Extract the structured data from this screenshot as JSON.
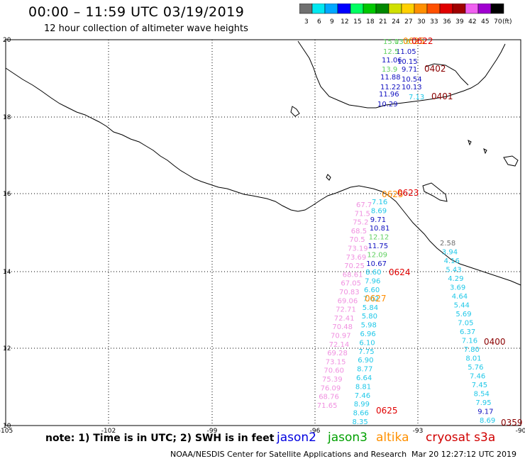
{
  "header": {
    "title": "00:00 – 11:59 UTC 03/19/2019",
    "subtitle": "12 hour collection of altimeter wave heights"
  },
  "colorbar": {
    "labels": [
      "3",
      "6",
      "9",
      "12",
      "15",
      "18",
      "21",
      "24",
      "27",
      "30",
      "33",
      "36",
      "39",
      "42",
      "45",
      "70"
    ],
    "unit": "(ft)",
    "colors": [
      "#707070",
      "#00e8f0",
      "#00a8ff",
      "#0000ff",
      "#00ff60",
      "#00c800",
      "#008800",
      "#d0e000",
      "#ffd000",
      "#ff9000",
      "#ff5000",
      "#e00000",
      "#a00000",
      "#f060f0",
      "#a000d0",
      "#000000"
    ]
  },
  "axes": {
    "lat_labels": [
      "20",
      "18",
      "16",
      "14",
      "12",
      "10"
    ],
    "lon_labels": [
      "-105",
      "-102",
      "-99",
      "-96",
      "-93",
      "-90"
    ]
  },
  "tracks": {
    "coast_north": {
      "values": [
        {
          "t": "15.0",
          "c": "#60d060"
        },
        {
          "t": "13.6",
          "c": "#60d060"
        },
        {
          "t": "11.05",
          "c": "#1010c0"
        },
        {
          "t": "12.5",
          "c": "#60d060"
        },
        {
          "t": "10.15",
          "c": "#1010c0"
        },
        {
          "t": "11.06",
          "c": "#1010c0"
        },
        {
          "t": "13.9",
          "c": "#60d060"
        },
        {
          "t": "9.71",
          "c": "#1010c0"
        },
        {
          "t": "10.54",
          "c": "#1010c0"
        },
        {
          "t": "11.88",
          "c": "#1010c0"
        },
        {
          "t": "11.22",
          "c": "#1010c0"
        },
        {
          "t": "10.13",
          "c": "#1010c0"
        },
        {
          "t": "11.96",
          "c": "#1010c0"
        },
        {
          "t": "7.13",
          "c": "#20c8e8"
        },
        {
          "t": "10.29",
          "c": "#1010c0"
        }
      ],
      "time_labels": [
        {
          "t": "0625",
          "c": "#ff8c00"
        },
        {
          "t": "0622",
          "c": "#e00000"
        },
        {
          "t": "0402",
          "c": "#8b0000"
        },
        {
          "t": "0401",
          "c": "#8b0000"
        }
      ]
    },
    "pink_track": [
      "67.7",
      "71.5",
      "75.2",
      "68.5",
      "70.5",
      "73.19",
      "73.69",
      "70.25",
      "68.61",
      "67.05",
      "70.83",
      "69.06",
      "72.71",
      "72.41",
      "70.48",
      "70.97",
      "72.14",
      "69.28",
      "73.15",
      "70.60",
      "75.39",
      "76.09",
      "68.76",
      "71.65"
    ],
    "blue_track": [
      {
        "t": "7.16",
        "c": "#20c8e8"
      },
      {
        "t": "8.69",
        "c": "#20c8e8"
      },
      {
        "t": "9.71",
        "c": "#1010c0"
      },
      {
        "t": "10.81",
        "c": "#1010c0"
      },
      {
        "t": "12.12",
        "c": "#60d060"
      },
      {
        "t": "11.75",
        "c": "#1010c0"
      },
      {
        "t": "12.09",
        "c": "#60d060"
      },
      {
        "t": "10.67",
        "c": "#1010c0"
      },
      {
        "t": "8.60",
        "c": "#20c8e8"
      },
      {
        "t": "7.96",
        "c": "#20c8e8"
      },
      {
        "t": "6.60",
        "c": "#20c8e8"
      },
      {
        "t": "7.02",
        "c": "#20c8e8"
      },
      {
        "t": "5.84",
        "c": "#20c8e8"
      },
      {
        "t": "5.80",
        "c": "#20c8e8"
      },
      {
        "t": "5.98",
        "c": "#20c8e8"
      },
      {
        "t": "6.96",
        "c": "#20c8e8"
      },
      {
        "t": "6.10",
        "c": "#20c8e8"
      },
      {
        "t": "7.75",
        "c": "#20c8e8"
      },
      {
        "t": "6.90",
        "c": "#20c8e8"
      },
      {
        "t": "8.77",
        "c": "#20c8e8"
      },
      {
        "t": "6.64",
        "c": "#20c8e8"
      },
      {
        "t": "8.81",
        "c": "#20c8e8"
      },
      {
        "t": "7.46",
        "c": "#20c8e8"
      },
      {
        "t": "8.99",
        "c": "#20c8e8"
      },
      {
        "t": "8.66",
        "c": "#20c8e8"
      },
      {
        "t": "8.35",
        "c": "#20c8e8"
      }
    ],
    "blue_time_labels": [
      {
        "t": "0625",
        "c": "#ff8c00"
      },
      {
        "t": "0623",
        "c": "#e00000"
      },
      {
        "t": "0624",
        "c": "#e00000"
      },
      {
        "t": "0627",
        "c": "#ff8c00"
      },
      {
        "t": "0625",
        "c": "#e00000"
      }
    ],
    "east_track": [
      {
        "t": "2.58",
        "c": "#707070"
      },
      {
        "t": "3.94",
        "c": "#20c8e8"
      },
      {
        "t": "4.16",
        "c": "#20c8e8"
      },
      {
        "t": "5.43",
        "c": "#20c8e8"
      },
      {
        "t": "4.29",
        "c": "#20c8e8"
      },
      {
        "t": "3.69",
        "c": "#20c8e8"
      },
      {
        "t": "4.64",
        "c": "#20c8e8"
      },
      {
        "t": "5.44",
        "c": "#20c8e8"
      },
      {
        "t": "5.69",
        "c": "#20c8e8"
      },
      {
        "t": "7.05",
        "c": "#20c8e8"
      },
      {
        "t": "6.37",
        "c": "#20c8e8"
      },
      {
        "t": "7.16",
        "c": "#20c8e8"
      },
      {
        "t": "7.80",
        "c": "#20c8e8"
      },
      {
        "t": "8.01",
        "c": "#20c8e8"
      },
      {
        "t": "5.76",
        "c": "#20c8e8"
      },
      {
        "t": "7.46",
        "c": "#20c8e8"
      },
      {
        "t": "7.45",
        "c": "#20c8e8"
      },
      {
        "t": "8.54",
        "c": "#20c8e8"
      },
      {
        "t": "7.95",
        "c": "#20c8e8"
      },
      {
        "t": "9.17",
        "c": "#1010c0"
      },
      {
        "t": "8.69",
        "c": "#20c8e8"
      }
    ],
    "east_time_labels": [
      {
        "t": "0400",
        "c": "#8b0000"
      },
      {
        "t": "0359",
        "c": "#8b0000"
      }
    ]
  },
  "footer": {
    "note": "note: 1) Time is in UTC; 2) SWH is in feet",
    "satellites": [
      {
        "name": "jason2",
        "color": "#0000e0"
      },
      {
        "name": "jason3",
        "color": "#00a000"
      },
      {
        "name": "altika",
        "color": "#ff9000"
      },
      {
        "name": "cryosat s3a",
        "color": "#d00000"
      }
    ],
    "credit": "NOAA/NESDIS Center for Satellite Applications and Research",
    "timestamp": "Mar 20 12:27:12 UTC 2019"
  }
}
